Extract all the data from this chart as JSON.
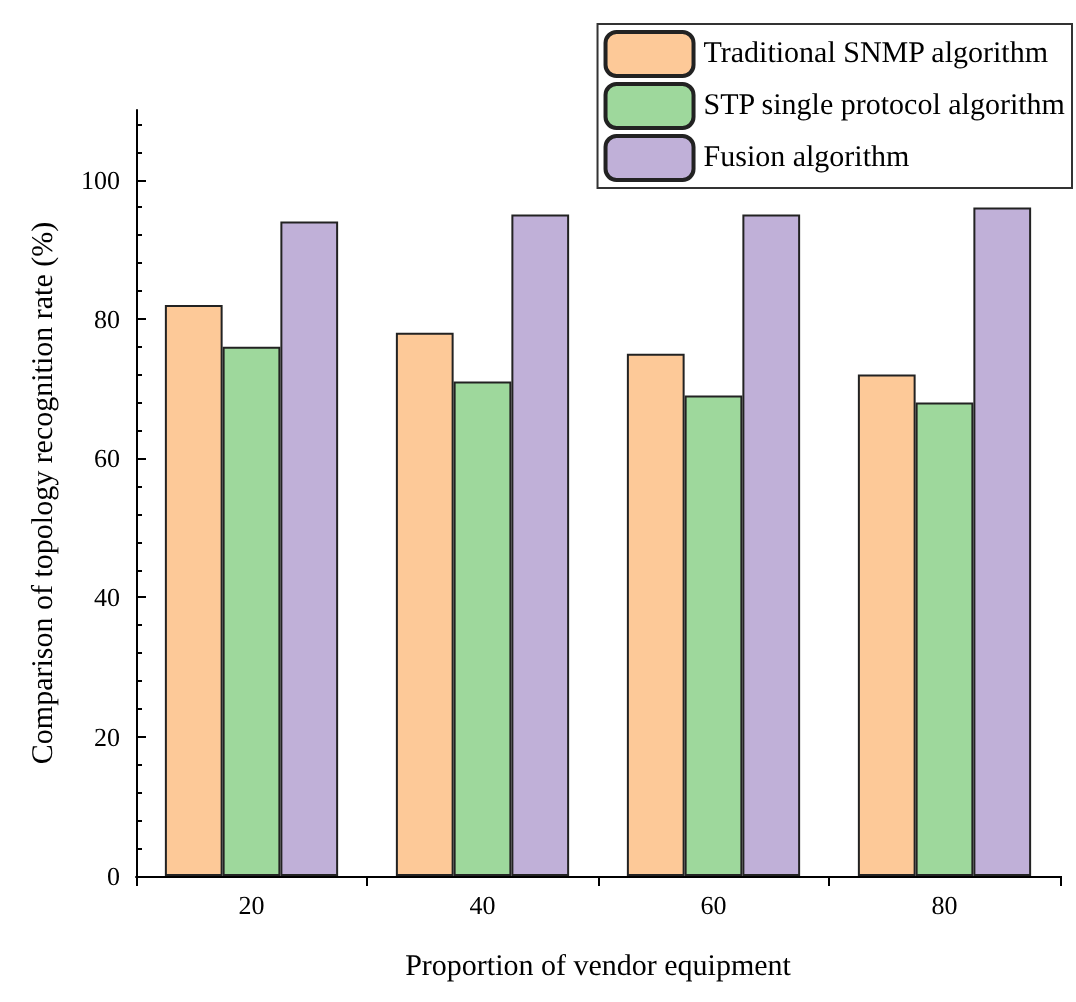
{
  "chart_data": {
    "type": "bar",
    "xlabel": "Proportion of vendor equipment",
    "ylabel": "Comparison of topology recognition rate (%)",
    "categories": [
      "20",
      "40",
      "60",
      "80"
    ],
    "series": [
      {
        "name": "Traditional SNMP algorithm",
        "color": "#fdc998",
        "values": [
          82,
          78,
          75,
          72
        ]
      },
      {
        "name": "STP single protocol algorithm",
        "color": "#9ed89c",
        "values": [
          76,
          71,
          69,
          68
        ]
      },
      {
        "name": "Fusion algorithm",
        "color": "#c0b0d8",
        "values": [
          94,
          95,
          95,
          96
        ]
      }
    ],
    "ylim": [
      0,
      110
    ],
    "yticks": [
      0,
      20,
      40,
      60,
      80,
      100
    ],
    "grid": false,
    "legend": "top right"
  }
}
